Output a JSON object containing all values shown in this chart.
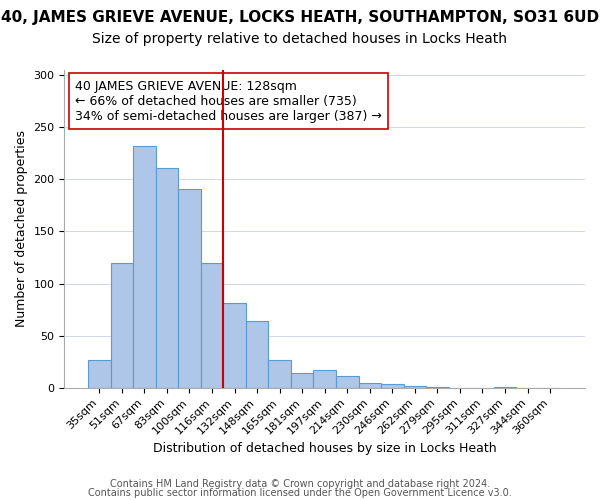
{
  "title": "40, JAMES GRIEVE AVENUE, LOCKS HEATH, SOUTHAMPTON, SO31 6UD",
  "subtitle": "Size of property relative to detached houses in Locks Heath",
  "xlabel": "Distribution of detached houses by size in Locks Heath",
  "ylabel": "Number of detached properties",
  "bar_color": "#aec6e8",
  "bar_edge_color": "#5b9bd5",
  "bins": [
    "35sqm",
    "51sqm",
    "67sqm",
    "83sqm",
    "100sqm",
    "116sqm",
    "132sqm",
    "148sqm",
    "165sqm",
    "181sqm",
    "197sqm",
    "214sqm",
    "230sqm",
    "246sqm",
    "262sqm",
    "279sqm",
    "295sqm",
    "311sqm",
    "327sqm",
    "344sqm",
    "360sqm"
  ],
  "values": [
    27,
    120,
    232,
    211,
    191,
    120,
    81,
    64,
    27,
    14,
    17,
    11,
    5,
    4,
    2,
    1,
    0,
    0,
    1,
    0,
    0
  ],
  "vline_bin_index": 6,
  "vline_color": "#cc0000",
  "annotation_text": "40 JAMES GRIEVE AVENUE: 128sqm\n← 66% of detached houses are smaller (735)\n34% of semi-detached houses are larger (387) →",
  "annotation_box_color": "white",
  "annotation_box_edge": "#cc0000",
  "ylim": [
    0,
    305
  ],
  "footer1": "Contains HM Land Registry data © Crown copyright and database right 2024.",
  "footer2": "Contains public sector information licensed under the Open Government Licence v3.0.",
  "title_fontsize": 11,
  "subtitle_fontsize": 10,
  "xlabel_fontsize": 9,
  "ylabel_fontsize": 9,
  "tick_fontsize": 8,
  "annotation_fontsize": 9,
  "footer_fontsize": 7
}
